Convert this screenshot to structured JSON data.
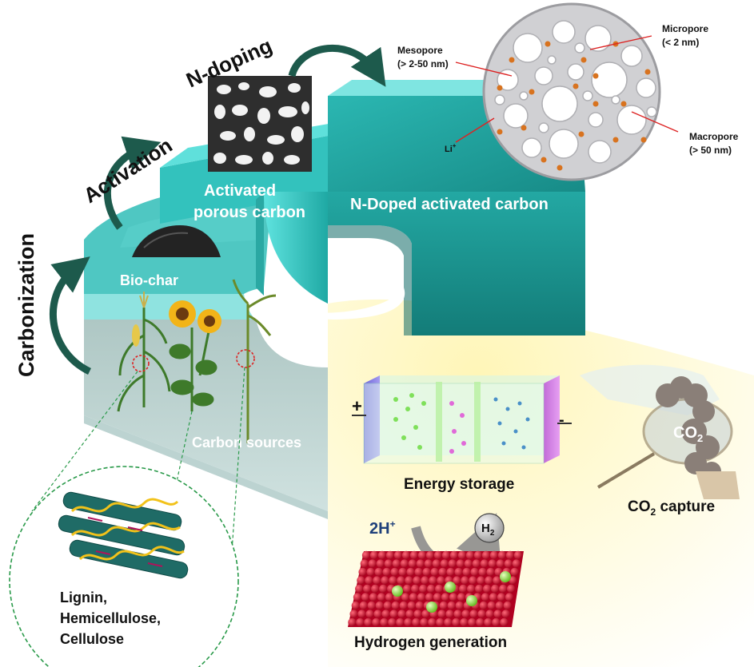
{
  "process_steps": {
    "carbonization": "Carbonization",
    "activation": "Activation",
    "n_doping": "N-doping"
  },
  "layers": {
    "carbon_sources": "Carbon sources",
    "bio_char": "Bio-char",
    "activated_porous_carbon": [
      "Activated",
      "porous carbon"
    ],
    "n_doped_activated_carbon": "N-Doped activated carbon"
  },
  "pores": {
    "mesopore": [
      "Mesopore",
      "(> 2-50 nm)"
    ],
    "micropore": [
      "Micropore",
      "(< 2 nm)"
    ],
    "macropore": [
      "Macropore",
      "(> 50 nm)"
    ],
    "li_ion": "Li",
    "li_charge": "+"
  },
  "biomass_components": [
    "Lignin,",
    "Hemicellulose,",
    "Cellulose"
  ],
  "applications": {
    "energy_storage": "Energy storage",
    "electrode_plus": "+",
    "electrode_minus": "-",
    "co2_bubble": "CO",
    "co2_bubble_sub": "2",
    "co2_capture_prefix": "CO",
    "co2_capture_sub": "2",
    "co2_capture_suffix": " capture",
    "protons": "2H",
    "protons_sup": "+",
    "hydrogen_molecule": "H",
    "hydrogen_molecule_sub": "2",
    "hydrogen_generation": "Hydrogen generation"
  },
  "colors": {
    "teal": "#1e9b97",
    "teal_dark": "#0f6a66",
    "teal_light": "#6fd2cf",
    "bio_char_band": "#8fe3e0",
    "carbon_sources_block": "#9fbcb9",
    "arrow_green": "#1d5a4c",
    "application_glow": "#fffbd6",
    "pore_disk": "#c7c7ca",
    "li_dot": "#d8731f",
    "catalyst_red": "#c8102e",
    "catalyst_green": "#9be03c"
  }
}
